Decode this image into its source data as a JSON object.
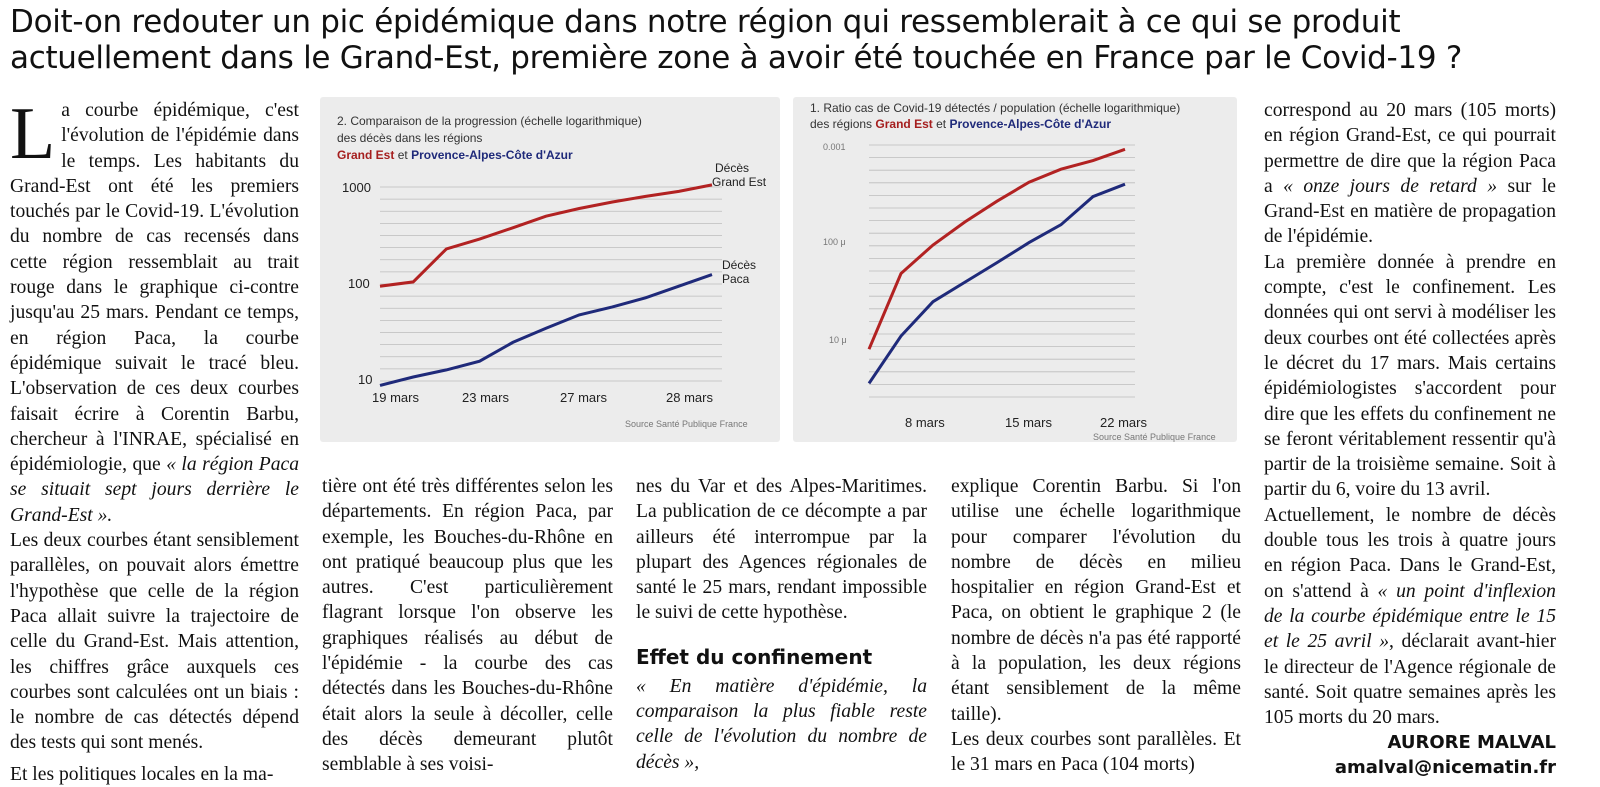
{
  "headline": "Doit-on redouter un pic épidémique dans notre région qui ressemblerait à ce qui se produit actuellement dans le Grand-Est, première zone à avoir été touchée en France par le Covid-19 ?",
  "col1": {
    "dropcap": "L",
    "p1": "a courbe épidémique, c'est l'évolution de l'épidémie dans le temps. Les habitants du Grand-Est ont été les premiers touchés par le Covid-19. L'évolution du nombre de cas recensés dans cette région ressemblait au trait rouge dans le graphique ci-contre jusqu'au 25 mars. Pendant ce temps, en région Paca, la courbe épidémique suivait le tracé bleu. L'observation de ces deux courbes faisait écrire à Corentin Barbu, chercheur à l'INRAE, spécialisé en épidémiologie, que ",
    "p1_quote": "« la région Paca se situait sept jours derrière le Grand-Est ».",
    "p2": "Les deux courbes étant sensiblement parallèles, on pouvait alors émettre l'hypothèse que celle de la région Paca allait suivre la trajectoire de celle du Grand-Est. Mais attention, les chiffres grâce auxquels ces courbes sont calculées ont un biais : le nombre de cas détectés dépend des tests qui sont menés.",
    "p3": "Et les politiques locales en la ma-"
  },
  "col2": {
    "p1": "tière ont été très différentes selon les départements. En région Paca, par exemple, les Bouches-du-Rhône en ont pratiqué beaucoup plus que les autres. C'est particulièrement flagrant lorsque l'on observe les graphiques réalisés au début de l'épidémie - la courbe des cas détectés dans les Bouches-du-Rhône était alors la seule à décoller, celle des décès demeurant plutôt semblable à ses voisi-"
  },
  "col3": {
    "p1": "nes du Var et des Alpes-Maritimes. La publication de ce décompte a par ailleurs été interrompue par la plupart des Agences régionales de santé le 25 mars, rendant impossible le suivi de cette hypothèse.",
    "subhead": "Effet du confinement",
    "p2": "« En matière d'épidémie, la comparaison la plus fiable reste celle de l'évolution du nombre de décès »,"
  },
  "col4": {
    "p1": "explique Corentin Barbu. Si l'on utilise une échelle logarithmique pour comparer l'évolution du nombre de décès en milieu hospitalier en région Grand-Est et Paca, on obtient le graphique 2 (le nombre de décès n'a pas été rapporté à la population, les deux régions étant sensiblement de la même taille).",
    "p2": "Les deux courbes sont parallèles. Et le 31 mars en Paca (104 morts)"
  },
  "col5": {
    "p1": "correspond au 20 mars (105 morts) en région Grand-Est, ce qui pourrait permettre de dire que la région Paca a ",
    "p1_quote": "« onze jours de retard »",
    "p1_end": " sur le Grand-Est en matière de propagation de l'épidémie.",
    "p2": "La première donnée à prendre en compte, c'est le confinement. Les données qui ont servi à modéliser les deux courbes ont été collectées après le décret du 17 mars. Mais certains épidémiologistes s'accordent pour dire que les effets du confinement ne se feront véritablement ressentir qu'à partir de la troisième semaine. Soit à partir du 6, voire du 13 avril.",
    "p3": "Actuellement, le nombre de décès double tous les trois à quatre jours en région Paca. Dans le Grand-Est, on s'attend à ",
    "p3_quote": "« un point d'inflexion de la courbe épidémique entre le 15 et le 25 avril »",
    "p3_end": ", déclarait avant-hier le directeur de l'Agence régionale de santé. Soit quatre semaines après les 105 morts du 20 mars.",
    "author": "AURORE MALVAL",
    "email": "amalval@nicematin.fr"
  },
  "chart_data": [
    {
      "type": "line",
      "title_line1": "2. Comparaison de la progression (échelle logarithmique)",
      "title_line2": "des décès dans les régions",
      "legend_red": "Grand Est",
      "legend_and": "et",
      "legend_blue": "Provence-Alpes-Côte d'Azur",
      "yscale": "log",
      "yticks": [
        "1000",
        "100",
        "10"
      ],
      "xticks": [
        "19 mars",
        "23 mars",
        "27 mars",
        "28 mars"
      ],
      "label_red_1": "Décès",
      "label_red_2": "Grand Est",
      "label_blue_1": "Décès",
      "label_blue_2": "Paca",
      "source": "Source Santé Publique France",
      "series": [
        {
          "name": "Décès Grand Est",
          "color": "#b22222",
          "values": [
            95,
            105,
            230,
            290,
            380,
            500,
            600,
            700,
            800,
            900,
            1050
          ]
        },
        {
          "name": "Décès Paca",
          "color": "#1f2a7a",
          "values": [
            9,
            11,
            13,
            16,
            25,
            35,
            48,
            58,
            72,
            95,
            125
          ]
        }
      ]
    },
    {
      "type": "line",
      "title_line1": "1. Ratio cas de Covid-19 détectés / population (échelle logarithmique)",
      "title_line2": "des régions",
      "legend_red": "Grand Est",
      "legend_and": "et",
      "legend_blue": "Provence-Alpes-Côte d'Azur",
      "yscale": "log",
      "yticks": [
        "0.001",
        "100 μ",
        "10 μ"
      ],
      "xticks": [
        "8 mars",
        "15 mars",
        "22 mars"
      ],
      "source": "Source Santé Publique France",
      "series": [
        {
          "name": "Grand Est",
          "color": "#b22222",
          "values": [
            6.5e-06,
            4.2e-05,
            8.5e-05,
            0.00015,
            0.00025,
            0.0004,
            0.00055,
            0.00068,
            0.0009
          ]
        },
        {
          "name": "Provence-Alpes-Côte d'Azur",
          "color": "#1f2a7a",
          "values": [
            2.8e-06,
            9e-06,
            2.1e-05,
            3.4e-05,
            5.5e-05,
            9e-05,
            0.00014,
            0.00028,
            0.00038
          ]
        }
      ]
    }
  ]
}
